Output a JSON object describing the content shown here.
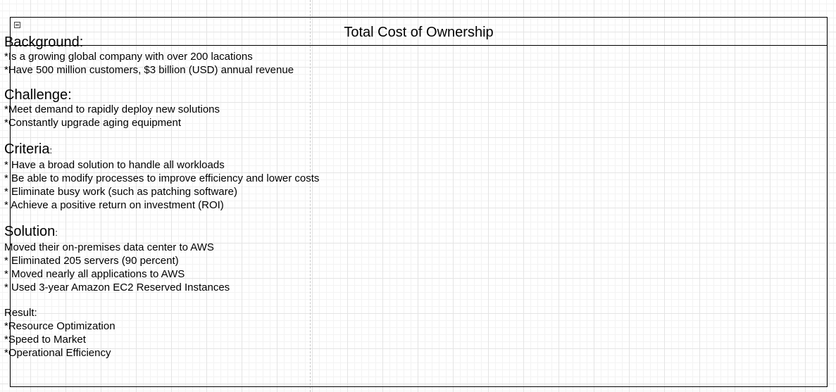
{
  "diagram": {
    "title": "Total Cost of Ownership",
    "collapse_symbol": "−",
    "sections": {
      "background": {
        "heading": "Background:",
        "lines": [
          "*Is a growing global company with over 200 lacations",
          "*Have 500 million customers, $3 billion (USD) annual revenue"
        ]
      },
      "challenge": {
        "heading": "Challenge:",
        "lines": [
          "*Meet demand to rapidly deploy new solutions",
          "*Constantly upgrade aging equipment"
        ]
      },
      "criteria": {
        "heading": "Criteria",
        "heading_suffix": ":",
        "lines": [
          "* Have a broad solution to handle all workloads",
          "* Be able to modify processes to improve efficiency and lower costs",
          "* Eliminate busy work (such as patching software)",
          "* Achieve a positive return on investment (ROI)"
        ]
      },
      "solution": {
        "heading": "Solution",
        "heading_suffix": ":",
        "lines": [
          "Moved their on-premises data center to AWS",
          "* Eliminated 205 servers (90 percent)",
          "* Moved nearly all applications to AWS",
          "* Used 3-year Amazon EC2 Reserved Instances"
        ]
      },
      "result": {
        "heading": "Result:",
        "lines": [
          "*Resource Optimization",
          "*Speed to Market",
          "*Operational Efficiency"
        ]
      }
    }
  }
}
